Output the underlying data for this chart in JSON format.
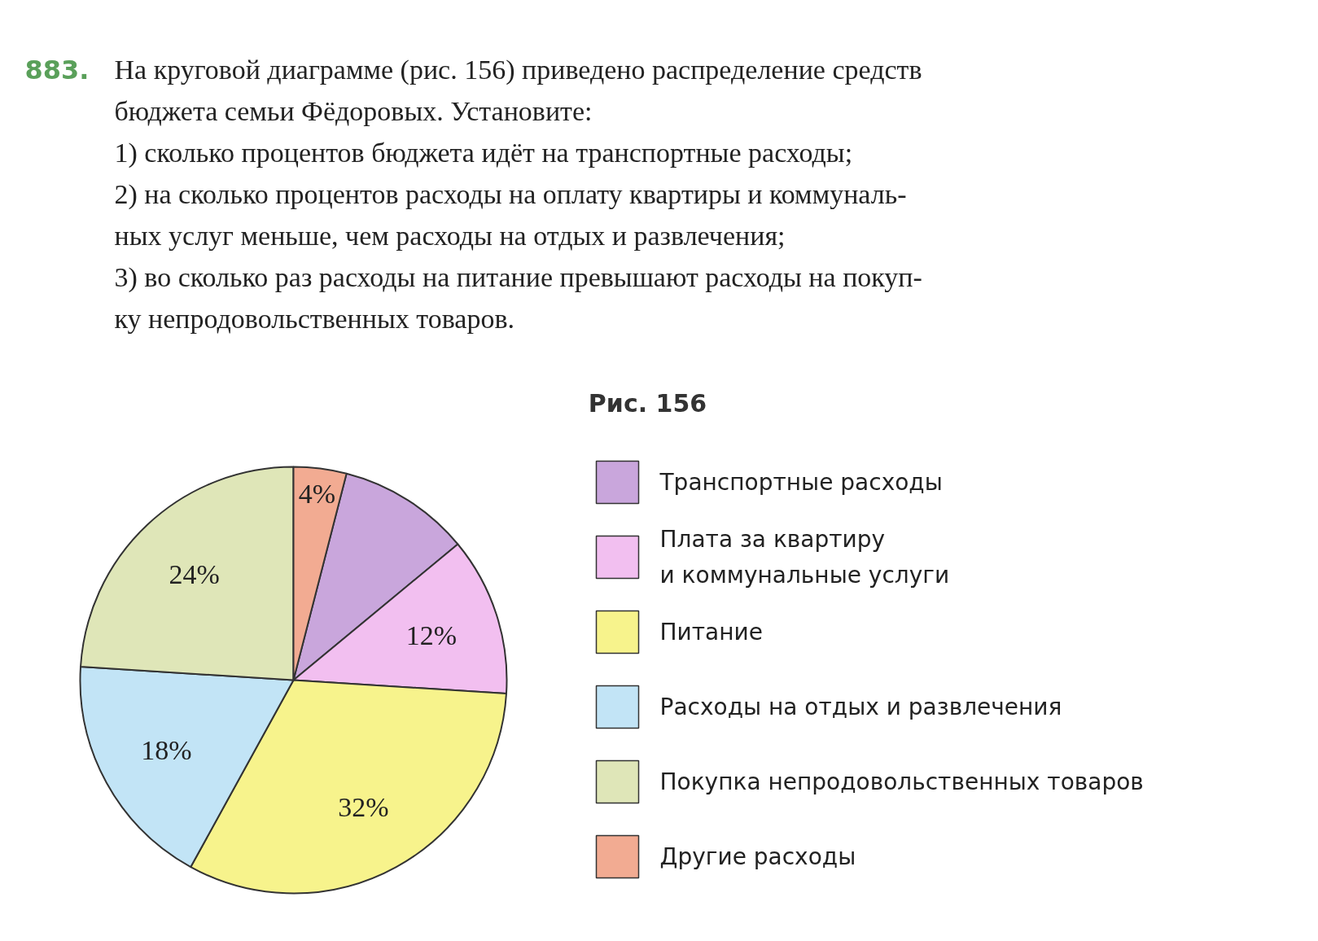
{
  "chart_data": {
    "type": "pie",
    "title": "Рис. 156",
    "annotations": [
      "883.",
      "На круговой диаграмме (рис. 156) приведено распределение средств",
      "бюджета семьи Фёдоровых. Установите:",
      "1) сколько процентов бюджета идёт на транспортные расходы;",
      "2) на сколько процентов расходы на оплату квартиры и коммуналь-",
      "ных услуг меньше, чем расходы на отдых и развлечения;",
      "3) во сколько раз расходы на питание превышают расходы на покуп-",
      "ку непродовольственных товаров."
    ],
    "categories": [
      "Транспортные расходы",
      "Плата за квартиру\nи коммунальные услуги",
      "Питание",
      "Расходы на отдых и развлечения",
      "Покупка непродовольственных товаров",
      "Другие расходы"
    ],
    "values": [
      10,
      12,
      32,
      18,
      24,
      4
    ],
    "value_labels": [
      null,
      "12%",
      "32%",
      "18%",
      "24%",
      "4%"
    ],
    "colors": [
      "#c9a6dc",
      "#f2bff0",
      "#f7f38c",
      "#c2e4f6",
      "#dfe6b8",
      "#f2ab92"
    ],
    "legend": "right"
  }
}
